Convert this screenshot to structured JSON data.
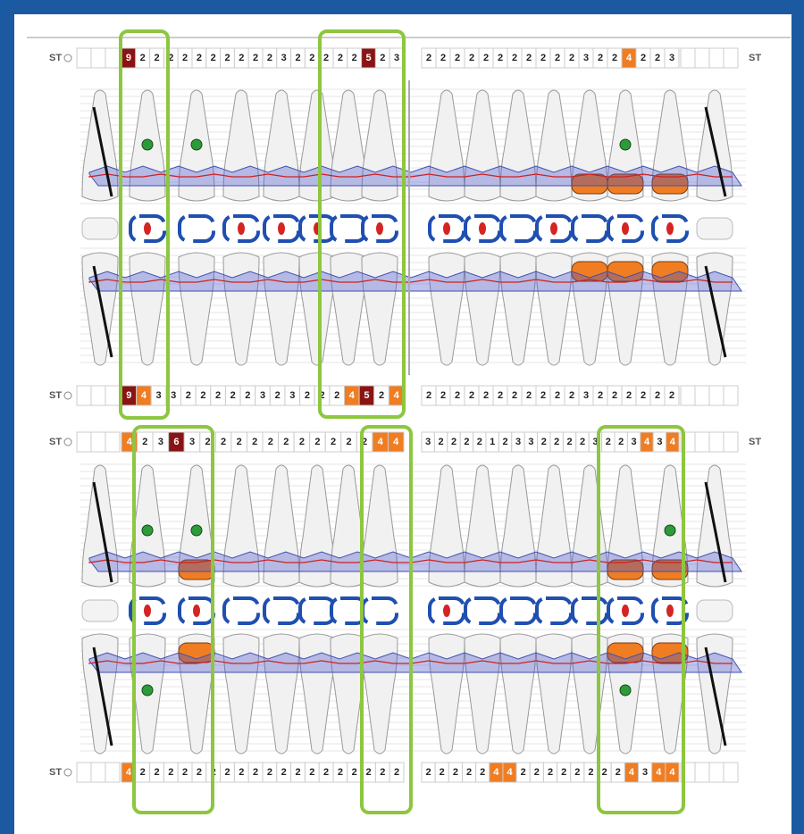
{
  "rows": [
    {
      "label": "ST",
      "right_label": true,
      "left": [
        9,
        2,
        2,
        2,
        2,
        2,
        2,
        2,
        2,
        2,
        2,
        3,
        2,
        2,
        2,
        2,
        2,
        5,
        2,
        3
      ],
      "right": [
        2,
        2,
        2,
        2,
        2,
        2,
        2,
        2,
        2,
        2,
        2,
        3,
        2,
        2,
        4,
        2,
        2,
        3
      ]
    },
    {
      "label": "ST",
      "right_label": false,
      "left": [
        9,
        4,
        3,
        3,
        2,
        2,
        2,
        2,
        2,
        3,
        2,
        3,
        2,
        2,
        2,
        4,
        5,
        2,
        4
      ],
      "right": [
        2,
        2,
        2,
        2,
        2,
        2,
        2,
        2,
        2,
        2,
        2,
        3,
        2,
        2,
        2,
        2,
        2,
        2
      ]
    },
    {
      "label": "ST",
      "right_label": true,
      "left": [
        4,
        2,
        3,
        6,
        3,
        2,
        2,
        2,
        2,
        2,
        2,
        2,
        2,
        2,
        2,
        2,
        4,
        4
      ],
      "right": [
        3,
        2,
        2,
        2,
        2,
        1,
        2,
        3,
        3,
        2,
        2,
        2,
        2,
        3,
        2,
        2,
        3,
        4,
        3,
        4
      ]
    },
    {
      "label": "ST",
      "right_label": false,
      "left": [
        4,
        2,
        2,
        2,
        2,
        2,
        2,
        2,
        2,
        2,
        2,
        2,
        2,
        2,
        2,
        2,
        2,
        2,
        2,
        2
      ],
      "right": [
        2,
        2,
        2,
        2,
        2,
        4,
        4,
        2,
        2,
        2,
        2,
        2,
        2,
        2,
        2,
        4,
        3,
        4,
        4
      ]
    }
  ]
}
